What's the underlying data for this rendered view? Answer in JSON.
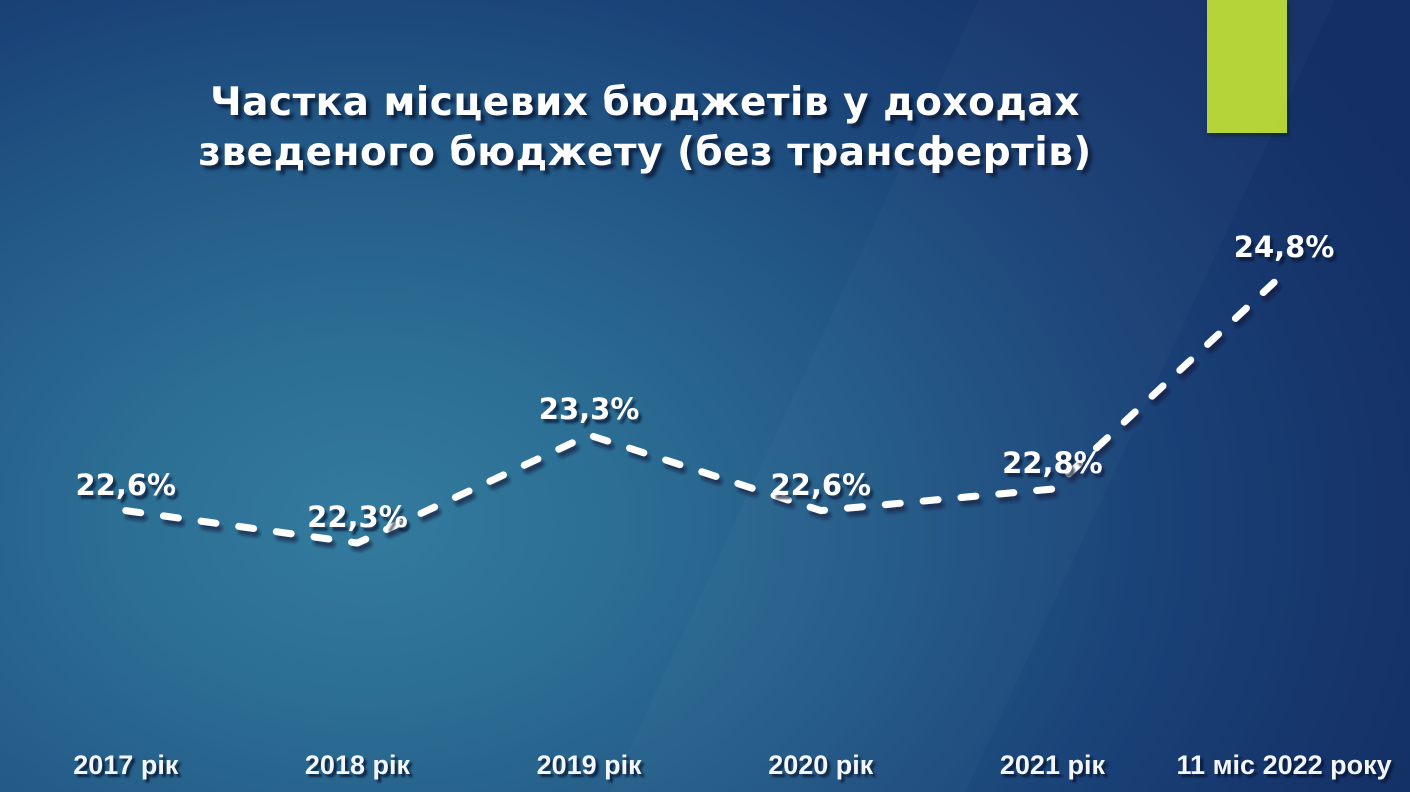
{
  "slide": {
    "background": {
      "center_color": "#337b9e",
      "mid_color": "#235a87",
      "edge_color": "#142f64"
    },
    "accent_rect_color": "#b4d335"
  },
  "chart_data": {
    "type": "line",
    "title": "Частка місцевих бюджетів у доходах зведеного бюджету (без трансфертів)",
    "categories": [
      "2017 рік",
      "2018 рік",
      "2019 рік",
      "2020 рік",
      "2021 рік",
      "11 міс 2022 року"
    ],
    "values": [
      22.6,
      22.3,
      23.3,
      22.6,
      22.8,
      24.8
    ],
    "labels": [
      "22,6%",
      "22,3%",
      "23,3%",
      "22,6%",
      "22,8%",
      "24,8%"
    ],
    "xlabel": "",
    "ylabel": "",
    "ylim": [
      20.5,
      25.5
    ],
    "grid": false,
    "legend": false,
    "line_color": "#ffffff",
    "line_style": "dashed-round",
    "drop_line_color": "#d9e4f0",
    "baseline_color": "#c3d2e2",
    "label_color": "#ffffff"
  }
}
